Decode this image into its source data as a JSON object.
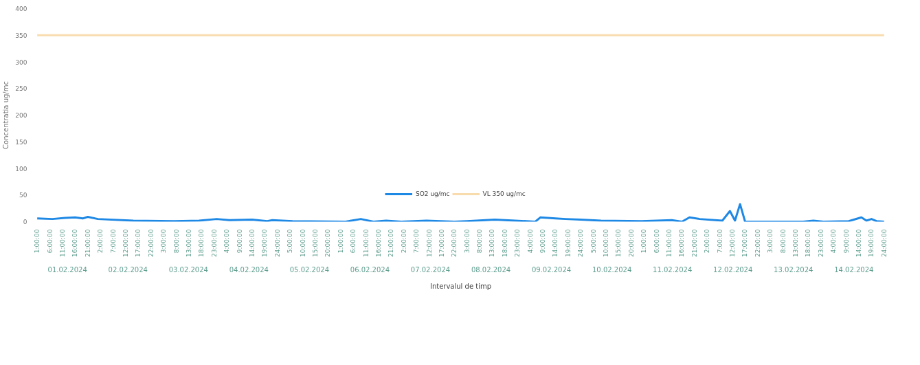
{
  "chart_data": {
    "type": "line",
    "xlabel": "Intervalul de timp",
    "ylabel": "Concentratia ug/mc",
    "xlim": [
      "2024-02-01T00:00",
      "2024-02-15T01:00"
    ],
    "ylim": [
      0,
      400
    ],
    "yticks": [
      0,
      50,
      100,
      150,
      200,
      250,
      300,
      350,
      400
    ],
    "xticks": [
      {
        "value": "2024-02-01T01:00",
        "label": "1:00:00"
      },
      {
        "value": "2024-02-01T06:00",
        "label": "6:00:00"
      },
      {
        "value": "2024-02-01T11:00",
        "label": "11:00:00"
      },
      {
        "value": "2024-02-01T16:00",
        "label": "16:00:00"
      },
      {
        "value": "2024-02-01T21:00",
        "label": "21:00:00"
      },
      {
        "value": "2024-02-02T02:00",
        "label": "2:00:00"
      },
      {
        "value": "2024-02-02T07:00",
        "label": "7:00:00"
      },
      {
        "value": "2024-02-02T12:00",
        "label": "12:00:00"
      },
      {
        "value": "2024-02-02T17:00",
        "label": "17:00:00"
      },
      {
        "value": "2024-02-02T22:00",
        "label": "22:00:00"
      },
      {
        "value": "2024-02-03T03:00",
        "label": "3:00:00"
      },
      {
        "value": "2024-02-03T08:00",
        "label": "8:00:00"
      },
      {
        "value": "2024-02-03T13:00",
        "label": "13:00:00"
      },
      {
        "value": "2024-02-03T18:00",
        "label": "18:00:00"
      },
      {
        "value": "2024-02-03T23:00",
        "label": "23:00:00"
      },
      {
        "value": "2024-02-04T04:00",
        "label": "4:00:00"
      },
      {
        "value": "2024-02-04T09:00",
        "label": "9:00:00"
      },
      {
        "value": "2024-02-04T14:00",
        "label": "14:00:00"
      },
      {
        "value": "2024-02-04T19:00",
        "label": "19:00:00"
      },
      {
        "value": "2024-02-05T00:00",
        "label": "24:00:00"
      },
      {
        "value": "2024-02-05T05:00",
        "label": "5:00:00"
      },
      {
        "value": "2024-02-05T10:00",
        "label": "10:00:00"
      },
      {
        "value": "2024-02-05T15:00",
        "label": "15:00:00"
      },
      {
        "value": "2024-02-05T20:00",
        "label": "20:00:00"
      },
      {
        "value": "2024-02-06T01:00",
        "label": "1:00:00"
      },
      {
        "value": "2024-02-06T06:00",
        "label": "6:00:00"
      },
      {
        "value": "2024-02-06T11:00",
        "label": "11:00:00"
      },
      {
        "value": "2024-02-06T16:00",
        "label": "16:00:00"
      },
      {
        "value": "2024-02-06T21:00",
        "label": "21:00:00"
      },
      {
        "value": "2024-02-07T02:00",
        "label": "2:00:00"
      },
      {
        "value": "2024-02-07T07:00",
        "label": "7:00:00"
      },
      {
        "value": "2024-02-07T12:00",
        "label": "12:00:00"
      },
      {
        "value": "2024-02-07T17:00",
        "label": "17:00:00"
      },
      {
        "value": "2024-02-07T22:00",
        "label": "22:00:00"
      },
      {
        "value": "2024-02-08T03:00",
        "label": "3:00:00"
      },
      {
        "value": "2024-02-08T08:00",
        "label": "8:00:00"
      },
      {
        "value": "2024-02-08T13:00",
        "label": "13:00:00"
      },
      {
        "value": "2024-02-08T18:00",
        "label": "18:00:00"
      },
      {
        "value": "2024-02-08T23:00",
        "label": "23:00:00"
      },
      {
        "value": "2024-02-09T04:00",
        "label": "4:00:00"
      },
      {
        "value": "2024-02-09T09:00",
        "label": "9:00:00"
      },
      {
        "value": "2024-02-09T14:00",
        "label": "14:00:00"
      },
      {
        "value": "2024-02-09T19:00",
        "label": "19:00:00"
      },
      {
        "value": "2024-02-10T00:00",
        "label": "24:00:00"
      },
      {
        "value": "2024-02-10T05:00",
        "label": "5:00:00"
      },
      {
        "value": "2024-02-10T10:00",
        "label": "10:00:00"
      },
      {
        "value": "2024-02-10T15:00",
        "label": "15:00:00"
      },
      {
        "value": "2024-02-10T20:00",
        "label": "20:00:00"
      },
      {
        "value": "2024-02-11T01:00",
        "label": "1:00:00"
      },
      {
        "value": "2024-02-11T06:00",
        "label": "6:00:00"
      },
      {
        "value": "2024-02-11T11:00",
        "label": "11:00:00"
      },
      {
        "value": "2024-02-11T16:00",
        "label": "16:00:00"
      },
      {
        "value": "2024-02-11T21:00",
        "label": "21:00:00"
      },
      {
        "value": "2024-02-12T02:00",
        "label": "2:00:00"
      },
      {
        "value": "2024-02-12T07:00",
        "label": "7:00:00"
      },
      {
        "value": "2024-02-12T12:00",
        "label": "12:00:00"
      },
      {
        "value": "2024-02-12T17:00",
        "label": "17:00:00"
      },
      {
        "value": "2024-02-12T22:00",
        "label": "22:00:00"
      },
      {
        "value": "2024-02-13T03:00",
        "label": "3:00:00"
      },
      {
        "value": "2024-02-13T08:00",
        "label": "8:00:00"
      },
      {
        "value": "2024-02-13T13:00",
        "label": "13:00:00"
      },
      {
        "value": "2024-02-13T18:00",
        "label": "18:00:00"
      },
      {
        "value": "2024-02-13T23:00",
        "label": "23:00:00"
      },
      {
        "value": "2024-02-14T04:00",
        "label": "4:00:00"
      },
      {
        "value": "2024-02-14T09:00",
        "label": "9:00:00"
      },
      {
        "value": "2024-02-14T14:00",
        "label": "14:00:00"
      },
      {
        "value": "2024-02-14T19:00",
        "label": "19:00:00"
      },
      {
        "value": "2024-02-15T00:00",
        "label": "24:00:00"
      }
    ],
    "series": [
      {
        "name": "SO2 ug/mc",
        "color": "#1e88e5",
        "x": [
          "2024-02-01T01:00",
          "2024-02-01T07:00",
          "2024-02-01T12:00",
          "2024-02-01T16:00",
          "2024-02-01T19:00",
          "2024-02-01T21:00",
          "2024-02-02T01:00",
          "2024-02-02T15:00",
          "2024-02-03T07:00",
          "2024-02-03T17:00",
          "2024-02-04T00:00",
          "2024-02-04T05:00",
          "2024-02-04T14:00",
          "2024-02-04T20:00",
          "2024-02-04T22:00",
          "2024-02-05T06:00",
          "2024-02-06T03:00",
          "2024-02-06T09:00",
          "2024-02-06T14:00",
          "2024-02-06T19:00",
          "2024-02-07T01:00",
          "2024-02-07T11:00",
          "2024-02-07T22:00",
          "2024-02-08T03:00",
          "2024-02-08T14:00",
          "2024-02-08T22:00",
          "2024-02-09T06:00",
          "2024-02-09T08:00",
          "2024-02-09T14:00",
          "2024-02-09T18:00",
          "2024-02-10T00:00",
          "2024-02-10T08:00",
          "2024-02-11T00:00",
          "2024-02-11T12:00",
          "2024-02-11T16:00",
          "2024-02-11T19:00",
          "2024-02-11T23:00",
          "2024-02-12T08:00",
          "2024-02-12T11:00",
          "2024-02-12T13:00",
          "2024-02-12T15:00",
          "2024-02-12T17:00",
          "2024-02-13T16:00",
          "2024-02-13T20:00",
          "2024-02-14T00:00",
          "2024-02-14T10:00",
          "2024-02-14T15:00",
          "2024-02-14T17:00",
          "2024-02-14T19:00",
          "2024-02-14T21:00",
          "2024-02-15T00:00"
        ],
        "values": [
          6,
          5,
          7,
          8,
          6,
          9,
          5,
          2,
          1,
          2,
          5,
          3,
          4,
          1,
          3,
          1,
          0,
          5,
          0,
          2,
          0,
          2,
          0,
          1,
          4,
          2,
          0,
          8,
          6,
          5,
          4,
          2,
          1,
          3,
          0,
          8,
          5,
          2,
          20,
          2,
          33,
          0,
          0,
          2,
          0,
          1,
          8,
          2,
          5,
          1,
          0
        ]
      },
      {
        "name": "VL 350 ug/mc",
        "color": "#f8dcae",
        "x": [
          "2024-02-01T01:00",
          "2024-02-15T00:00"
        ],
        "values": [
          350,
          350
        ]
      }
    ],
    "annotations": [
      "01.02.2024",
      "02.02.2024",
      "03.02.2024",
      "04.02.2024",
      "05.02.2024",
      "06.02.2024",
      "07.02.2024",
      "08.02.2024",
      "09.02.2024",
      "10.02.2024",
      "11.02.2024",
      "12.02.2024",
      "13.02.2024",
      "14.02.2024"
    ],
    "legend": "bottom",
    "marker": "none",
    "line_style": "solid"
  }
}
